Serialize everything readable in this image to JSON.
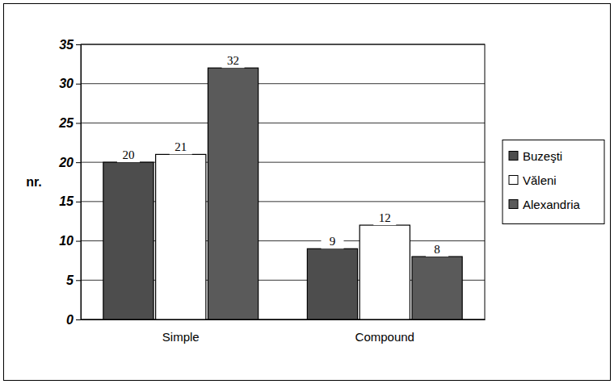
{
  "chart_data": {
    "type": "bar",
    "y_label": "nr.",
    "categories": [
      "Simple",
      "Compound"
    ],
    "series": [
      {
        "name": "Buzeşti",
        "color": "#4d4d4d",
        "values": [
          20,
          9
        ]
      },
      {
        "name": "Văleni",
        "color": "#ffffff",
        "values": [
          21,
          12
        ]
      },
      {
        "name": "Alexandria",
        "color": "#5a5a5a",
        "values": [
          32,
          8
        ]
      }
    ],
    "ylim": [
      0,
      35
    ],
    "yticks": [
      0,
      5,
      10,
      15,
      20,
      25,
      30,
      35
    ],
    "grid": true,
    "data_labels": true,
    "legend": "right"
  }
}
